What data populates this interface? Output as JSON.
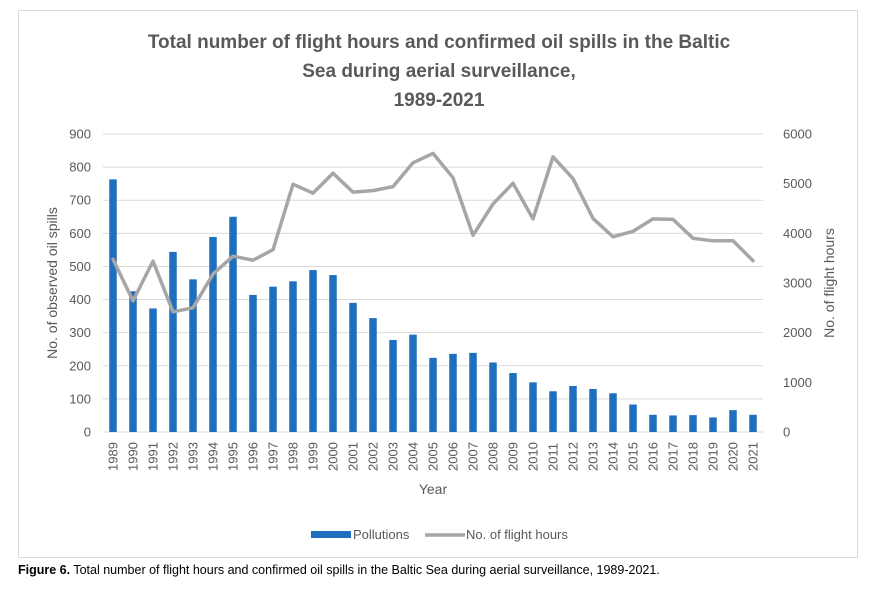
{
  "chart_data": {
    "type": "bar",
    "title_lines": [
      "Total number of flight hours and confirmed oil spills in the Baltic",
      "Sea during aerial surveillance,",
      "1989-2021"
    ],
    "xlabel": "Year",
    "ylabel_left": "No. of observed oil spills",
    "ylabel_right": "No. of flight hours",
    "ylim_left": [
      0,
      900
    ],
    "ylim_right": [
      0,
      6000
    ],
    "yticks_left": [
      "0",
      "100",
      "200",
      "300",
      "400",
      "500",
      "600",
      "700",
      "800",
      "900"
    ],
    "yticks_right": [
      "0",
      "1000",
      "2000",
      "3000",
      "4000",
      "5000",
      "6000"
    ],
    "categories": [
      "1989",
      "1990",
      "1991",
      "1992",
      "1993",
      "1994",
      "1995",
      "1996",
      "1997",
      "1998",
      "1999",
      "2000",
      "2001",
      "2002",
      "2003",
      "2004",
      "2005",
      "2006",
      "2007",
      "2008",
      "2009",
      "2010",
      "2011",
      "2012",
      "2013",
      "2014",
      "2015",
      "2016",
      "2017",
      "2018",
      "2019",
      "2020",
      "2021"
    ],
    "series": [
      {
        "name": "Pollutions",
        "type": "bar",
        "axis": "left",
        "color": "#1f6fbf",
        "values": [
          763,
          425,
          373,
          544,
          461,
          589,
          650,
          414,
          439,
          455,
          489,
          474,
          390,
          344,
          278,
          294,
          224,
          236,
          239,
          210,
          178,
          150,
          123,
          139,
          130,
          117,
          83,
          52,
          50,
          51,
          44,
          66,
          52
        ]
      },
      {
        "name": "No. of flight hours",
        "type": "line",
        "axis": "right",
        "color": "#a6a6a6",
        "values": [
          3480,
          2640,
          3440,
          2420,
          2500,
          3180,
          3540,
          3460,
          3670,
          4990,
          4810,
          5210,
          4830,
          4860,
          4940,
          5420,
          5610,
          5120,
          3960,
          4590,
          5010,
          4290,
          5540,
          5100,
          4300,
          3930,
          4040,
          4290,
          4280,
          3900,
          3850,
          3850,
          3450
        ]
      }
    ],
    "grid": true,
    "legend_position": "bottom"
  },
  "caption": {
    "label": "Figure 6.",
    "text": " Total number of flight hours and confirmed oil spills in the Baltic Sea during aerial surveillance, 1989-2021."
  }
}
